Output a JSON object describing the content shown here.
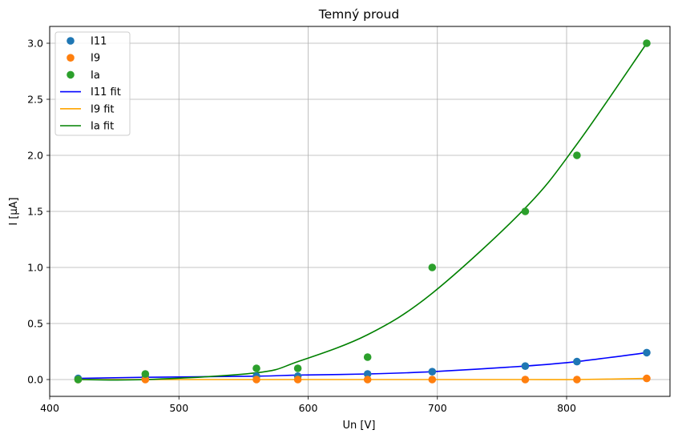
{
  "chart_data": {
    "type": "scatter",
    "title": "Temný proud",
    "xlabel": "Un [V]",
    "ylabel": "I [µA]",
    "xlim": [
      400,
      880
    ],
    "ylim": [
      -0.15,
      3.15
    ],
    "xticks": [
      400,
      500,
      600,
      700,
      800
    ],
    "xtick_labels": [
      "400",
      "500",
      "600",
      "700",
      "800"
    ],
    "yticks": [
      0.0,
      0.5,
      1.0,
      1.5,
      2.0,
      2.5,
      3.0
    ],
    "ytick_labels": [
      "0.0",
      "0.5",
      "1.0",
      "1.5",
      "2.0",
      "2.5",
      "3.0"
    ],
    "grid": true,
    "legend_position": "top-left",
    "x": [
      422,
      474,
      560,
      592,
      646,
      696,
      768,
      808,
      862
    ],
    "series": [
      {
        "name": "I11",
        "kind": "points",
        "color": "#1f77b4",
        "values": [
          0.01,
          0.02,
          0.03,
          0.03,
          0.05,
          0.07,
          0.12,
          0.16,
          0.24
        ]
      },
      {
        "name": "I9",
        "kind": "points",
        "color": "#ff7f0e",
        "values": [
          0.0,
          0.0,
          0.0,
          0.0,
          0.0,
          0.0,
          0.0,
          0.0,
          0.01
        ]
      },
      {
        "name": "Ia",
        "kind": "points",
        "color": "#2ca02c",
        "values": [
          0.0,
          0.05,
          0.1,
          0.1,
          0.2,
          1.0,
          1.5,
          2.0,
          3.0
        ]
      },
      {
        "name": "I11 fit",
        "kind": "line",
        "color": "#0000ff",
        "values": [
          0.01,
          0.02,
          0.03,
          0.04,
          0.05,
          0.07,
          0.12,
          0.16,
          0.24
        ]
      },
      {
        "name": "I9 fit",
        "kind": "line",
        "color": "#ffa500",
        "values": [
          0.0,
          0.0,
          0.0,
          0.0,
          0.0,
          0.0,
          0.0,
          0.0,
          0.01
        ]
      },
      {
        "name": "Ia fit",
        "kind": "line",
        "color": "#008000",
        "values": [
          0.0,
          0.0,
          0.06,
          0.16,
          0.4,
          0.77,
          1.53,
          2.1,
          3.0
        ]
      }
    ]
  }
}
